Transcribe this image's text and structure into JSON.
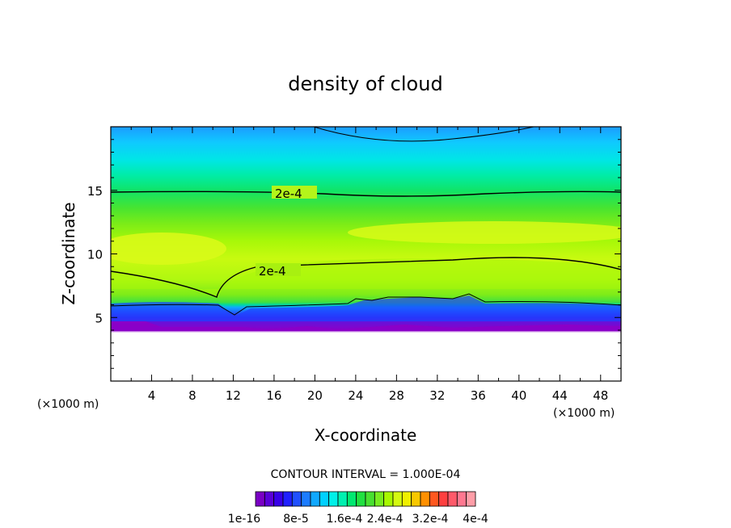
{
  "chart_data": {
    "type": "heatmap",
    "title": "density of cloud",
    "xlabel": "X-coordinate",
    "ylabel": "Z-coordinate",
    "x_unit": "(×1000 m)",
    "x_unit_right": "(×1000 m)",
    "xlim": [
      0,
      50
    ],
    "ylim": [
      0,
      20
    ],
    "x_ticks": [
      "4",
      "8",
      "12",
      "16",
      "20",
      "24",
      "28",
      "32",
      "36",
      "40",
      "44",
      "48"
    ],
    "y_ticks": [
      "5",
      "10",
      "15"
    ],
    "contour_interval_text": "CONTOUR INTERVAL = 1.000E-04",
    "contour_labels": [
      "2e-4",
      "2e-4"
    ],
    "colorbar_labels": [
      "1e-16",
      "8e-5",
      "1.6e-4",
      "2.4e-4",
      "3.2e-4",
      "4e-4"
    ],
    "colorbar_colors": [
      "#7a00c4",
      "#5a00d8",
      "#3800e8",
      "#2020ff",
      "#2050ff",
      "#1c7cff",
      "#10a8ff",
      "#00d0ff",
      "#00f0e8",
      "#00f0b0",
      "#00e870",
      "#20e040",
      "#48e030",
      "#78ec20",
      "#a8f800",
      "#d4fa10",
      "#f0f000",
      "#f8c800",
      "#ff9000",
      "#ff5820",
      "#ff4040",
      "#ff5a6a",
      "#ff7890",
      "#ff9ea8"
    ],
    "cloud_base_km": 4.5,
    "cloud_top_km": 20,
    "max_density_region": "x 0-12 km, z 10-13 km"
  }
}
